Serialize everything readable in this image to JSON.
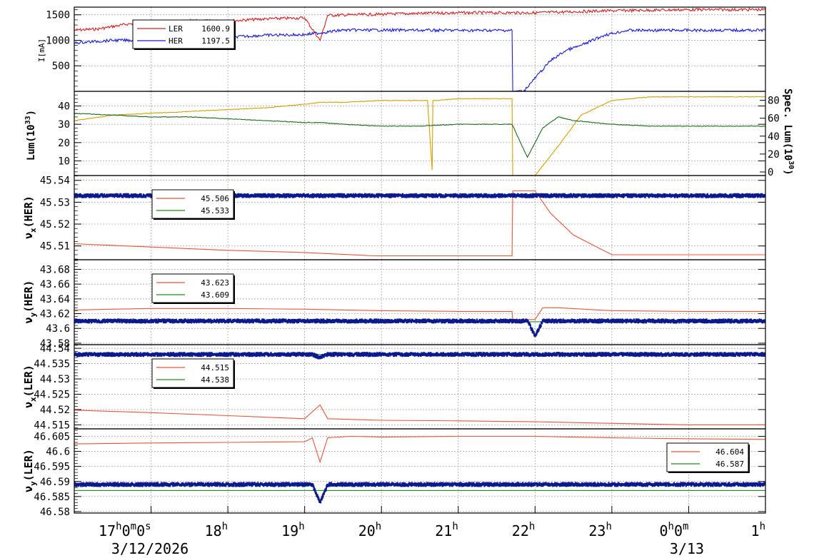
{
  "colors": {
    "ler": "#d62020",
    "her": "#1a1ad6",
    "lum": "#d4a000",
    "spec": "#1a6b1a",
    "set": "#e8553a",
    "meas": "#1c8c1c",
    "dots": "#0b1a8c"
  },
  "x_axis": {
    "ticks": [
      {
        "t": 17,
        "label": "17",
        "sup": "h",
        "rest": "0",
        "sup2": "m",
        "rest2": "0",
        "sup3": "s"
      },
      {
        "t": 18,
        "label": "18",
        "sup": "h"
      },
      {
        "t": 19,
        "label": "19",
        "sup": "h"
      },
      {
        "t": 20,
        "label": "20",
        "sup": "h"
      },
      {
        "t": 21,
        "label": "21",
        "sup": "h"
      },
      {
        "t": 22,
        "label": "22",
        "sup": "h"
      },
      {
        "t": 23,
        "label": "23",
        "sup": "h"
      },
      {
        "t": 24,
        "label": "0",
        "sup": "h",
        "rest": "0",
        "sup2": "m"
      },
      {
        "t": 25,
        "label": "1",
        "sup": "h"
      }
    ],
    "date_left": "3/12/2026",
    "date_right": "3/13",
    "range_hours": [
      16.0,
      25.0
    ]
  },
  "chart_data": [
    {
      "id": "current",
      "type": "line",
      "ylabel": "I[mA]",
      "ylim": [
        0,
        1650
      ],
      "yticks": [
        "500",
        "1000",
        "1500"
      ],
      "ytick_values": [
        500,
        1000,
        1500
      ],
      "legend": [
        {
          "name": "LER",
          "value": "1600.9",
          "color": "ler"
        },
        {
          "name": "HER",
          "value": "1197.5",
          "color": "her"
        }
      ],
      "series": [
        {
          "name": "LER",
          "color": "ler",
          "x": [
            16.0,
            16.3,
            16.7,
            17.0,
            17.5,
            18.0,
            18.5,
            19.0,
            19.2,
            19.3,
            20.0,
            20.5,
            21.0,
            21.7,
            22.0,
            22.5,
            23.0,
            23.5,
            24.0,
            24.5,
            25.0
          ],
          "y": [
            1200,
            1220,
            1320,
            1340,
            1380,
            1380,
            1420,
            1440,
            1000,
            1490,
            1510,
            1530,
            1540,
            1540,
            1540,
            1560,
            1580,
            1590,
            1600,
            1600,
            1601
          ]
        },
        {
          "name": "HER",
          "color": "her",
          "x": [
            16.0,
            16.5,
            17.0,
            17.8,
            18.0,
            18.5,
            19.0,
            19.5,
            20.0,
            21.0,
            21.7,
            21.71,
            21.85,
            22.2,
            22.4,
            22.6,
            22.9,
            23.2,
            24.0,
            25.0
          ],
          "y": [
            950,
            1000,
            1000,
            1050,
            1060,
            1100,
            1110,
            1200,
            1200,
            1195,
            1195,
            0,
            0,
            600,
            800,
            900,
            1100,
            1195,
            1197,
            1197.5
          ]
        }
      ]
    },
    {
      "id": "lum",
      "type": "line",
      "ylabel": "Lum(10",
      "ylabel_sup": "33",
      "ylabel_tail": ")",
      "ylim": [
        2,
        48
      ],
      "yticks": [
        "10",
        "20",
        "30",
        "40"
      ],
      "ytick_values": [
        10,
        20,
        30,
        40
      ],
      "y2label": "Spec. Lum(10",
      "y2label_sup": "30",
      "y2label_tail": ")",
      "y2ticks": [
        "0",
        "20",
        "40",
        "60",
        "80"
      ],
      "y2tick_values": [
        0,
        20,
        40,
        60,
        80
      ],
      "series": [
        {
          "name": "",
          "color": "lum",
          "x": [
            16.0,
            16.5,
            17.0,
            17.5,
            18.0,
            18.5,
            19.0,
            19.2,
            19.5,
            20.0,
            20.6,
            20.66,
            20.67,
            20.7,
            21.0,
            21.7,
            21.71,
            22.0,
            22.3,
            22.6,
            23.0,
            23.5,
            24.0,
            25.0
          ],
          "y": [
            32,
            35,
            36,
            37,
            38,
            39,
            41,
            42,
            42,
            43,
            43,
            5,
            43,
            43,
            44,
            44,
            2,
            2,
            18,
            35,
            43,
            45,
            45,
            45
          ]
        },
        {
          "name": "",
          "color": "spec",
          "x": [
            16.0,
            16.5,
            17.0,
            17.5,
            18.0,
            18.5,
            19.0,
            19.2,
            19.5,
            20.0,
            20.5,
            21.0,
            21.7,
            21.9,
            22.1,
            22.3,
            22.5,
            23.0,
            23.5,
            24.0,
            25.0
          ],
          "y": [
            36,
            35,
            34,
            34,
            33,
            32,
            31,
            31,
            30,
            29,
            29,
            30,
            30,
            12,
            28,
            34,
            32,
            30,
            29,
            29,
            29
          ]
        }
      ]
    },
    {
      "id": "nux_her",
      "type": "line",
      "ylabel": "ν",
      "ylabel_sub": "x",
      "ylabel_tail": "(HER)",
      "ylim": [
        45.5037,
        45.5422
      ],
      "yticks": [
        "45.51",
        "45.52",
        "45.53",
        "45.54"
      ],
      "ytick_values": [
        45.51,
        45.52,
        45.53,
        45.54
      ],
      "legend": [
        {
          "name": "",
          "value": "45.506",
          "color": "set"
        },
        {
          "name": "",
          "value": "45.533",
          "color": "meas"
        }
      ],
      "series": [
        {
          "name": "",
          "color": "set",
          "x": [
            16.0,
            17.0,
            18.0,
            19.0,
            19.9,
            20.5,
            21.7,
            21.71,
            22.0,
            22.2,
            22.5,
            23.0,
            24.0,
            25.0
          ],
          "y": [
            45.511,
            45.5095,
            45.508,
            45.507,
            45.5055,
            45.5055,
            45.5055,
            45.5352,
            45.5352,
            45.525,
            45.515,
            45.506,
            45.506,
            45.506
          ]
        },
        {
          "name": "",
          "color": "meas",
          "x": [
            16.0,
            25.0
          ],
          "y": [
            45.533,
            45.533
          ]
        },
        {
          "name": "",
          "color": "dots",
          "x": [
            16.0,
            25.0
          ],
          "y": [
            45.533,
            45.533
          ]
        }
      ]
    },
    {
      "id": "nuy_her",
      "type": "line",
      "ylabel": "ν",
      "ylabel_sub": "y",
      "ylabel_tail": "(HER)",
      "ylim": [
        43.578,
        43.693
      ],
      "yticks": [
        "43.58",
        "43.6",
        "43.62",
        "43.64",
        "43.66",
        "43.68"
      ],
      "ytick_values": [
        43.58,
        43.6,
        43.62,
        43.64,
        43.66,
        43.68
      ],
      "legend": [
        {
          "name": "",
          "value": "43.623",
          "color": "set"
        },
        {
          "name": "",
          "value": "43.609",
          "color": "meas"
        }
      ],
      "series": [
        {
          "name": "",
          "color": "set",
          "x": [
            16.0,
            16.5,
            17.0,
            18.0,
            19.0,
            20.0,
            21.0,
            21.7,
            21.71,
            22.0,
            22.1,
            22.3,
            23.0,
            24.0,
            25.0
          ],
          "y": [
            43.625,
            43.626,
            43.627,
            43.627,
            43.626,
            43.624,
            43.623,
            43.623,
            43.612,
            43.612,
            43.628,
            43.628,
            43.624,
            43.623,
            43.623
          ]
        },
        {
          "name": "",
          "color": "meas",
          "x": [
            16.0,
            25.0
          ],
          "y": [
            43.609,
            43.609
          ]
        },
        {
          "name": "",
          "color": "dots",
          "x": [
            16.0,
            21.9,
            22.0,
            22.1,
            25.0
          ],
          "y": [
            43.61,
            43.61,
            43.59,
            43.61,
            43.61
          ]
        }
      ]
    },
    {
      "id": "nux_ler",
      "type": "line",
      "ylabel": "ν",
      "ylabel_sub": "x",
      "ylabel_tail": "(LER)",
      "ylim": [
        44.5137,
        44.5412
      ],
      "yticks": [
        "44.515",
        "44.52",
        "44.525",
        "44.53",
        "44.535",
        "44.54"
      ],
      "ytick_values": [
        44.515,
        44.52,
        44.525,
        44.53,
        44.535,
        44.54
      ],
      "legend": [
        {
          "name": "",
          "value": "44.515",
          "color": "set"
        },
        {
          "name": "",
          "value": "44.538",
          "color": "meas"
        }
      ],
      "series": [
        {
          "name": "",
          "color": "set",
          "x": [
            16.0,
            17.0,
            18.0,
            18.5,
            19.0,
            19.2,
            19.3,
            20.0,
            21.0,
            22.0,
            23.0,
            24.0,
            25.0
          ],
          "y": [
            44.5198,
            44.519,
            44.518,
            44.5175,
            44.517,
            44.5215,
            44.517,
            44.5165,
            44.5163,
            44.516,
            44.5155,
            44.515,
            44.515
          ]
        },
        {
          "name": "",
          "color": "meas",
          "x": [
            16.0,
            25.0
          ],
          "y": [
            44.538,
            44.538
          ]
        },
        {
          "name": "",
          "color": "dots",
          "x": [
            16.0,
            19.1,
            19.2,
            19.3,
            25.0
          ],
          "y": [
            44.538,
            44.538,
            44.537,
            44.538,
            44.538
          ]
        }
      ]
    },
    {
      "id": "nuy_ler",
      "type": "line",
      "ylabel": "ν",
      "ylabel_sub": "y",
      "ylabel_tail": "(LER)",
      "ylim": [
        46.5795,
        46.6075
      ],
      "yticks": [
        "46.58",
        "46.585",
        "46.59",
        "46.595",
        "46.6",
        "46.605"
      ],
      "ytick_values": [
        46.58,
        46.585,
        46.59,
        46.595,
        46.6,
        46.605
      ],
      "legend": [
        {
          "name": "",
          "value": "46.604",
          "color": "set"
        },
        {
          "name": "",
          "value": "46.587",
          "color": "meas"
        }
      ],
      "series": [
        {
          "name": "",
          "color": "set",
          "x": [
            16.0,
            17.0,
            18.0,
            19.0,
            19.1,
            19.2,
            19.3,
            19.6,
            20.0,
            21.0,
            22.0,
            23.0,
            24.0,
            25.0
          ],
          "y": [
            46.6025,
            46.6028,
            46.603,
            46.6032,
            46.6045,
            46.5965,
            46.6045,
            46.605,
            46.6048,
            46.605,
            46.605,
            46.6045,
            46.6042,
            46.604
          ]
        },
        {
          "name": "",
          "color": "meas",
          "x": [
            16.0,
            25.0
          ],
          "y": [
            46.587,
            46.587
          ]
        },
        {
          "name": "",
          "color": "dots",
          "x": [
            16.0,
            19.1,
            19.2,
            19.3,
            25.0
          ],
          "y": [
            46.589,
            46.589,
            46.583,
            46.589,
            46.589
          ]
        }
      ]
    }
  ]
}
